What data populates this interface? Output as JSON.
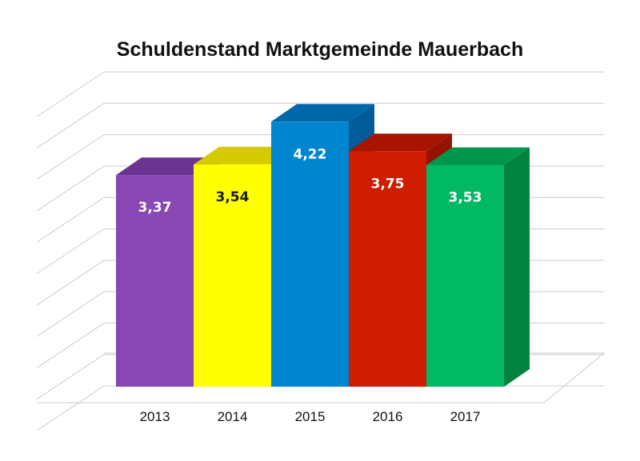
{
  "chart_data": {
    "type": "bar",
    "title": "Schuldenstand Marktgemeinde Mauerbach",
    "categories": [
      "2013",
      "2014",
      "2015",
      "2016",
      "2017"
    ],
    "values": [
      3.37,
      3.54,
      4.22,
      3.75,
      3.53
    ],
    "data_labels": [
      "3,37",
      "3,54",
      "4,22",
      "3,75",
      "3,53"
    ],
    "ylim": [
      0,
      5
    ],
    "grid": true,
    "legend": "none",
    "style": "3d",
    "colors": {
      "front": [
        "#8847b2",
        "#ffff00",
        "#0085cf",
        "#d01c00",
        "#00b962"
      ],
      "top": [
        "#6c3491",
        "#d5cb00",
        "#0067a8",
        "#a91400",
        "#00974c"
      ],
      "side": [
        "#5e2c80",
        "#c2b800",
        "#005c99",
        "#961200",
        "#00833f"
      ],
      "label": [
        "#ffffff",
        "#1a1a1a",
        "#ffffff",
        "#ffffff",
        "#ffffff"
      ]
    }
  }
}
